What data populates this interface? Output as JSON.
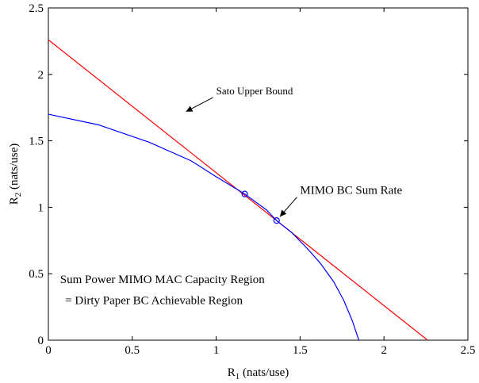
{
  "chart_data": {
    "type": "line",
    "title": "",
    "xlabel": {
      "main": "R",
      "sub": "1",
      "unit": " (nats/use)"
    },
    "ylabel": {
      "main": "R",
      "sub": "2",
      "unit": " (nats/use)"
    },
    "xlim": [
      0,
      2.5
    ],
    "ylim": [
      0,
      2.5
    ],
    "xticks": [
      0,
      0.5,
      1,
      1.5,
      2,
      2.5
    ],
    "yticks": [
      0,
      0.5,
      1,
      1.5,
      2,
      2.5
    ],
    "xtick_labels": [
      "0",
      "0.5",
      "1",
      "1.5",
      "2",
      "2.5"
    ],
    "ytick_labels": [
      "0",
      "0.5",
      "1",
      "1.5",
      "2",
      "2.5"
    ],
    "grid": false,
    "series": [
      {
        "color": "#ff0000",
        "x": [
          0,
          2.26
        ],
        "y": [
          2.26,
          0
        ]
      },
      {
        "color": "#0000ff",
        "x": [
          0,
          0.3,
          0.6,
          0.85,
          1.0,
          1.17,
          1.3,
          1.36,
          1.45,
          1.55,
          1.62,
          1.7,
          1.76,
          1.81,
          1.85
        ],
        "y": [
          1.7,
          1.62,
          1.49,
          1.35,
          1.23,
          1.1,
          0.98,
          0.9,
          0.81,
          0.68,
          0.58,
          0.44,
          0.3,
          0.15,
          0.0
        ]
      }
    ],
    "markers": [
      {
        "x": 1.17,
        "y": 1.1,
        "color": "#0000ff",
        "shape": "circle"
      },
      {
        "x": 1.36,
        "y": 0.9,
        "color": "#0000ff",
        "shape": "circle"
      }
    ],
    "annotations": [
      {
        "id": "sato",
        "text": "Sato Upper Bound",
        "x": 1.0,
        "y": 1.85,
        "arrow_to": [
          0.82,
          1.72
        ],
        "size": "small"
      },
      {
        "id": "mimo",
        "text": "MIMO BC Sum Rate",
        "x": 1.5,
        "y": 1.1,
        "arrow_to": [
          1.38,
          0.93
        ],
        "size": "big"
      },
      {
        "id": "region1",
        "text": "Sum Power MIMO MAC Capacity Region",
        "x": 0.07,
        "y": 0.43,
        "size": "big"
      },
      {
        "id": "region2",
        "text": "= Dirty Paper BC Achievable Region",
        "x": 0.1,
        "y": 0.27,
        "size": "big"
      }
    ]
  }
}
